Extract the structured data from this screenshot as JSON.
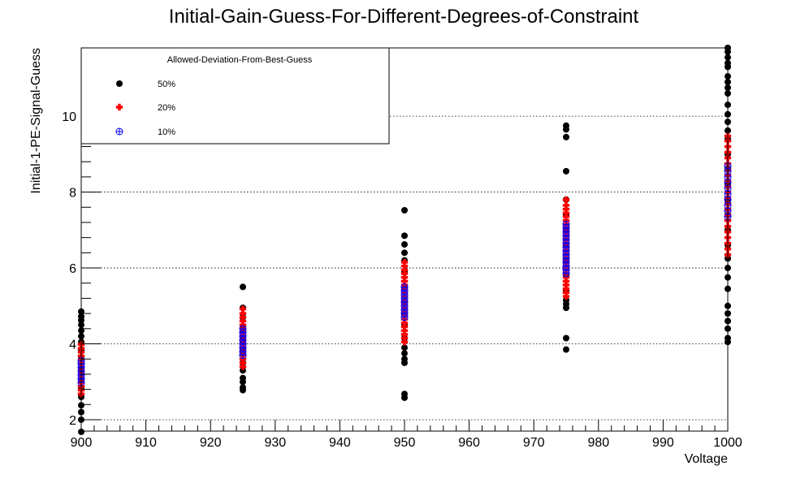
{
  "chart_data": {
    "type": "scatter",
    "title": "Initial-Gain-Guess-For-Different-Degrees-of-Constraint",
    "xlabel": "Voltage",
    "ylabel": "Initial-1-PE-Signal-Guess",
    "xlim": [
      900,
      1000
    ],
    "ylim": [
      1.7,
      11.8
    ],
    "x_ticks": [
      900,
      910,
      920,
      930,
      940,
      950,
      960,
      970,
      980,
      990,
      1000
    ],
    "y_ticks": [
      2,
      4,
      6,
      8,
      10
    ],
    "grid": true,
    "legend": {
      "title": "Allowed-Deviation-From-Best-Guess",
      "position": "top-left"
    },
    "series": [
      {
        "name": "50%",
        "marker": "filled-circle",
        "color": "#000000",
        "points": [
          [
            900,
            1.68
          ],
          [
            900,
            2.0
          ],
          [
            900,
            2.2
          ],
          [
            900,
            2.38
          ],
          [
            900,
            2.6
          ],
          [
            900,
            2.85
          ],
          [
            900,
            3.05
          ],
          [
            900,
            3.3
          ],
          [
            900,
            3.6
          ],
          [
            900,
            3.85
          ],
          [
            900,
            4.05
          ],
          [
            900,
            4.2
          ],
          [
            900,
            4.35
          ],
          [
            900,
            4.5
          ],
          [
            900,
            4.62
          ],
          [
            900,
            4.72
          ],
          [
            900,
            4.85
          ],
          [
            925,
            2.78
          ],
          [
            925,
            2.85
          ],
          [
            925,
            3.0
          ],
          [
            925,
            3.1
          ],
          [
            925,
            3.3
          ],
          [
            925,
            3.5
          ],
          [
            925,
            3.8
          ],
          [
            925,
            4.1
          ],
          [
            925,
            4.4
          ],
          [
            925,
            4.7
          ],
          [
            925,
            4.95
          ],
          [
            925,
            5.5
          ],
          [
            950,
            2.58
          ],
          [
            950,
            2.68
          ],
          [
            950,
            3.5
          ],
          [
            950,
            3.6
          ],
          [
            950,
            3.75
          ],
          [
            950,
            3.9
          ],
          [
            950,
            4.15
          ],
          [
            950,
            4.5
          ],
          [
            950,
            4.8
          ],
          [
            950,
            5.1
          ],
          [
            950,
            5.5
          ],
          [
            950,
            5.9
          ],
          [
            950,
            6.2
          ],
          [
            950,
            6.4
          ],
          [
            950,
            6.62
          ],
          [
            950,
            6.85
          ],
          [
            950,
            7.52
          ],
          [
            975,
            3.85
          ],
          [
            975,
            4.15
          ],
          [
            975,
            4.95
          ],
          [
            975,
            5.05
          ],
          [
            975,
            5.15
          ],
          [
            975,
            5.4
          ],
          [
            975,
            5.8
          ],
          [
            975,
            6.2
          ],
          [
            975,
            6.6
          ],
          [
            975,
            7.0
          ],
          [
            975,
            7.4
          ],
          [
            975,
            7.8
          ],
          [
            975,
            8.55
          ],
          [
            975,
            9.45
          ],
          [
            975,
            9.65
          ],
          [
            975,
            9.75
          ],
          [
            1000,
            4.05
          ],
          [
            1000,
            4.15
          ],
          [
            1000,
            4.4
          ],
          [
            1000,
            4.6
          ],
          [
            1000,
            4.8
          ],
          [
            1000,
            5.0
          ],
          [
            1000,
            5.45
          ],
          [
            1000,
            5.75
          ],
          [
            1000,
            6.0
          ],
          [
            1000,
            6.25
          ],
          [
            1000,
            6.6
          ],
          [
            1000,
            7.0
          ],
          [
            1000,
            7.4
          ],
          [
            1000,
            7.8
          ],
          [
            1000,
            8.2
          ],
          [
            1000,
            8.6
          ],
          [
            1000,
            9.0
          ],
          [
            1000,
            9.4
          ],
          [
            1000,
            9.62
          ],
          [
            1000,
            9.85
          ],
          [
            1000,
            10.05
          ],
          [
            1000,
            10.3
          ],
          [
            1000,
            10.6
          ],
          [
            1000,
            10.75
          ],
          [
            1000,
            10.9
          ],
          [
            1000,
            11.05
          ],
          [
            1000,
            11.3
          ],
          [
            1000,
            11.4
          ],
          [
            1000,
            11.55
          ],
          [
            1000,
            11.7
          ],
          [
            1000,
            11.8
          ]
        ]
      },
      {
        "name": "20%",
        "marker": "filled-cross",
        "color": "#ff0000",
        "points": [
          [
            900,
            2.68
          ],
          [
            900,
            2.78
          ],
          [
            900,
            2.88
          ],
          [
            900,
            2.98
          ],
          [
            900,
            3.08
          ],
          [
            900,
            3.18
          ],
          [
            900,
            3.28
          ],
          [
            900,
            3.38
          ],
          [
            900,
            3.48
          ],
          [
            900,
            3.58
          ],
          [
            900,
            3.68
          ],
          [
            900,
            3.78
          ],
          [
            900,
            3.88
          ],
          [
            900,
            3.98
          ],
          [
            925,
            3.4
          ],
          [
            925,
            3.5
          ],
          [
            925,
            3.6
          ],
          [
            925,
            3.7
          ],
          [
            925,
            3.8
          ],
          [
            925,
            3.9
          ],
          [
            925,
            4.0
          ],
          [
            925,
            4.1
          ],
          [
            925,
            4.2
          ],
          [
            925,
            4.3
          ],
          [
            925,
            4.4
          ],
          [
            925,
            4.5
          ],
          [
            925,
            4.6
          ],
          [
            925,
            4.7
          ],
          [
            925,
            4.8
          ],
          [
            925,
            4.92
          ],
          [
            950,
            4.05
          ],
          [
            950,
            4.15
          ],
          [
            950,
            4.25
          ],
          [
            950,
            4.35
          ],
          [
            950,
            4.45
          ],
          [
            950,
            4.55
          ],
          [
            950,
            4.65
          ],
          [
            950,
            4.75
          ],
          [
            950,
            4.85
          ],
          [
            950,
            4.95
          ],
          [
            950,
            5.05
          ],
          [
            950,
            5.15
          ],
          [
            950,
            5.25
          ],
          [
            950,
            5.35
          ],
          [
            950,
            5.45
          ],
          [
            950,
            5.55
          ],
          [
            950,
            5.65
          ],
          [
            950,
            5.75
          ],
          [
            950,
            5.85
          ],
          [
            950,
            5.95
          ],
          [
            950,
            6.05
          ],
          [
            950,
            6.15
          ],
          [
            975,
            5.25
          ],
          [
            975,
            5.35
          ],
          [
            975,
            5.45
          ],
          [
            975,
            5.55
          ],
          [
            975,
            5.65
          ],
          [
            975,
            5.75
          ],
          [
            975,
            5.85
          ],
          [
            975,
            5.95
          ],
          [
            975,
            6.05
          ],
          [
            975,
            6.15
          ],
          [
            975,
            6.25
          ],
          [
            975,
            6.35
          ],
          [
            975,
            6.45
          ],
          [
            975,
            6.55
          ],
          [
            975,
            6.65
          ],
          [
            975,
            6.75
          ],
          [
            975,
            6.85
          ],
          [
            975,
            6.95
          ],
          [
            975,
            7.05
          ],
          [
            975,
            7.15
          ],
          [
            975,
            7.25
          ],
          [
            975,
            7.35
          ],
          [
            975,
            7.45
          ],
          [
            975,
            7.55
          ],
          [
            975,
            7.65
          ],
          [
            975,
            7.8
          ],
          [
            1000,
            6.35
          ],
          [
            1000,
            6.5
          ],
          [
            1000,
            6.65
          ],
          [
            1000,
            6.8
          ],
          [
            1000,
            6.95
          ],
          [
            1000,
            7.1
          ],
          [
            1000,
            7.25
          ],
          [
            1000,
            7.4
          ],
          [
            1000,
            7.55
          ],
          [
            1000,
            7.7
          ],
          [
            1000,
            7.85
          ],
          [
            1000,
            8.0
          ],
          [
            1000,
            8.15
          ],
          [
            1000,
            8.3
          ],
          [
            1000,
            8.45
          ],
          [
            1000,
            8.6
          ],
          [
            1000,
            8.75
          ],
          [
            1000,
            8.9
          ],
          [
            1000,
            9.05
          ],
          [
            1000,
            9.2
          ],
          [
            1000,
            9.35
          ],
          [
            1000,
            9.48
          ]
        ]
      },
      {
        "name": "10%",
        "marker": "open-circle-plus",
        "color": "#0000ff",
        "points": [
          [
            900,
            2.98
          ],
          [
            900,
            3.08
          ],
          [
            900,
            3.18
          ],
          [
            900,
            3.28
          ],
          [
            900,
            3.38
          ],
          [
            900,
            3.48
          ],
          [
            900,
            3.55
          ],
          [
            925,
            3.7
          ],
          [
            925,
            3.8
          ],
          [
            925,
            3.9
          ],
          [
            925,
            4.0
          ],
          [
            925,
            4.1
          ],
          [
            925,
            4.2
          ],
          [
            925,
            4.3
          ],
          [
            925,
            4.4
          ],
          [
            950,
            4.7
          ],
          [
            950,
            4.8
          ],
          [
            950,
            4.9
          ],
          [
            950,
            5.0
          ],
          [
            950,
            5.1
          ],
          [
            950,
            5.2
          ],
          [
            950,
            5.3
          ],
          [
            950,
            5.4
          ],
          [
            950,
            5.5
          ],
          [
            975,
            5.85
          ],
          [
            975,
            5.95
          ],
          [
            975,
            6.05
          ],
          [
            975,
            6.15
          ],
          [
            975,
            6.25
          ],
          [
            975,
            6.35
          ],
          [
            975,
            6.45
          ],
          [
            975,
            6.55
          ],
          [
            975,
            6.65
          ],
          [
            975,
            6.75
          ],
          [
            975,
            6.85
          ],
          [
            975,
            6.95
          ],
          [
            975,
            7.05
          ],
          [
            975,
            7.15
          ],
          [
            1000,
            7.35
          ],
          [
            1000,
            7.5
          ],
          [
            1000,
            7.65
          ],
          [
            1000,
            7.8
          ],
          [
            1000,
            7.95
          ],
          [
            1000,
            8.1
          ],
          [
            1000,
            8.25
          ],
          [
            1000,
            8.4
          ],
          [
            1000,
            8.55
          ],
          [
            1000,
            8.68
          ]
        ]
      }
    ]
  }
}
